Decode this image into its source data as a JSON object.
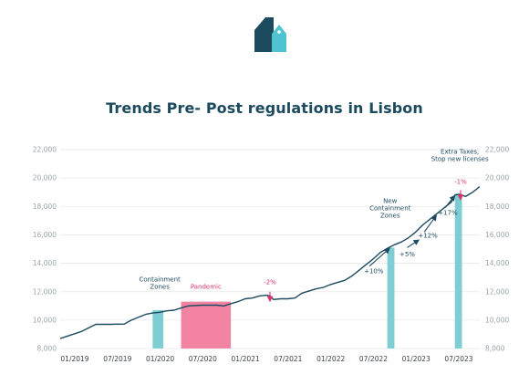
{
  "title": "Trends Pre- Post regulations in Lisbon",
  "colors": {
    "line": "#1c4a5e",
    "brand_dark": "#1c4a5e",
    "brand_light": "#4fc3cf",
    "containment": "#7dcdd3",
    "pandemic": "#f283a2",
    "pandemic_text": "#e0336b",
    "grid": "#e6e9eb"
  },
  "chart_data": {
    "type": "line",
    "title": "Trends Pre- Post regulations in Lisbon",
    "ylim": [
      8000,
      22000
    ],
    "y_ticks": [
      8000,
      10000,
      12000,
      14000,
      16000,
      18000,
      20000,
      22000
    ],
    "y_tick_labels": [
      "8,000",
      "10,000",
      "12,000",
      "14,000",
      "16,000",
      "18,000",
      "20,000",
      "22,000"
    ],
    "x_tick_labels": [
      "01/2019",
      "07/2019",
      "01/2020",
      "07/2020",
      "01/2021",
      "07/2021",
      "01/2022",
      "07/2022",
      "01/2023",
      "07/2023"
    ],
    "x_range_months": [
      0,
      59
    ],
    "grid": true,
    "series": [
      {
        "points": [
          [
            0,
            8700
          ],
          [
            3,
            9200
          ],
          [
            4,
            9450
          ],
          [
            5,
            9700
          ],
          [
            7,
            9700
          ],
          [
            9,
            9720
          ],
          [
            10,
            10000
          ],
          [
            12,
            10400
          ],
          [
            13,
            10500
          ],
          [
            14,
            10550
          ],
          [
            15,
            10650
          ],
          [
            16,
            10700
          ],
          [
            17,
            10850
          ],
          [
            18,
            11000
          ],
          [
            20,
            11050
          ],
          [
            22,
            11050
          ],
          [
            23,
            11000
          ],
          [
            24,
            11150
          ],
          [
            25,
            11300
          ],
          [
            26,
            11500
          ],
          [
            27,
            11550
          ],
          [
            28,
            11700
          ],
          [
            29,
            11750
          ],
          [
            29.5,
            11700
          ],
          [
            30,
            11450
          ],
          [
            31,
            11500
          ],
          [
            32,
            11500
          ],
          [
            33,
            11550
          ],
          [
            34,
            11900
          ],
          [
            35,
            12050
          ],
          [
            36,
            12200
          ],
          [
            37,
            12300
          ],
          [
            38,
            12500
          ],
          [
            39,
            12650
          ],
          [
            40,
            12800
          ],
          [
            41,
            13100
          ],
          [
            42,
            13500
          ],
          [
            43,
            13900
          ],
          [
            44,
            14300
          ],
          [
            45,
            14750
          ],
          [
            46,
            15050
          ],
          [
            47,
            15300
          ],
          [
            48,
            15500
          ],
          [
            49,
            15800
          ],
          [
            50,
            16200
          ],
          [
            51,
            16700
          ],
          [
            52,
            17100
          ],
          [
            53,
            17500
          ],
          [
            54,
            17900
          ],
          [
            55,
            18300
          ],
          [
            55.5,
            18800
          ],
          [
            56,
            18850
          ],
          [
            56.5,
            18800
          ],
          [
            57,
            18700
          ],
          [
            57.5,
            18850
          ],
          [
            58,
            19000
          ],
          [
            59,
            19400
          ]
        ]
      }
    ],
    "bands": [
      {
        "kind": "containment",
        "x0": 13,
        "x1": 14.5,
        "y": 10700
      },
      {
        "kind": "pandemic",
        "x0": 17,
        "x1": 24,
        "y": 11300
      },
      {
        "kind": "containment",
        "x0": 46,
        "x1": 47,
        "y": 15100
      },
      {
        "kind": "containment",
        "x0": 55.5,
        "x1": 56.5,
        "y": 18900
      }
    ],
    "annotations": [
      {
        "text": [
          "Containment",
          "Zones"
        ],
        "x": 14,
        "y": 12200,
        "color": "#1c4a5e"
      },
      {
        "text": [
          "Pandemic"
        ],
        "x": 20.5,
        "y": 12200,
        "color": "#e0336b"
      },
      {
        "text": [
          "-2%"
        ],
        "x": 29.5,
        "y": 12530,
        "color": "#e0336b"
      },
      {
        "text": [
          "New",
          "Containment",
          "Zones"
        ],
        "x": 46.4,
        "y": 17200,
        "color": "#1c4a5e"
      },
      {
        "text": [
          "Extra Taxes,",
          "Stop new licenses"
        ],
        "x": 56.2,
        "y": 21200,
        "color": "#1c4a5e"
      },
      {
        "text": [
          "-1%"
        ],
        "x": 56.3,
        "y": 19600,
        "color": "#e0336b"
      },
      {
        "text": [
          "+10%"
        ],
        "x": 44.1,
        "y": 13300,
        "color": "#1c4a5e"
      },
      {
        "text": [
          "+5%"
        ],
        "x": 48.8,
        "y": 14500,
        "color": "#1c4a5e"
      },
      {
        "text": [
          "+12%"
        ],
        "x": 51.7,
        "y": 15800,
        "color": "#1c4a5e"
      },
      {
        "text": [
          "+17%"
        ],
        "x": 54.5,
        "y": 17400,
        "color": "#1c4a5e"
      }
    ],
    "trend_arrows": [
      {
        "from": [
          43.5,
          13800
        ],
        "to": [
          46.2,
          15000
        ],
        "color": "#1c4a5e"
      },
      {
        "from": [
          48.8,
          15100
        ],
        "to": [
          50.3,
          15600
        ],
        "color": "#1c4a5e"
      },
      {
        "from": [
          51.2,
          16200
        ],
        "to": [
          52.8,
          17300
        ],
        "color": "#1c4a5e"
      },
      {
        "from": [
          54.1,
          17900
        ],
        "to": [
          55.4,
          18700
        ],
        "color": "#1c4a5e"
      },
      {
        "from": [
          29.5,
          12000
        ],
        "to": [
          29.5,
          11400
        ],
        "color": "#e0336b"
      },
      {
        "from": [
          56.3,
          19150
        ],
        "to": [
          56.3,
          18550
        ],
        "color": "#e0336b"
      }
    ]
  }
}
